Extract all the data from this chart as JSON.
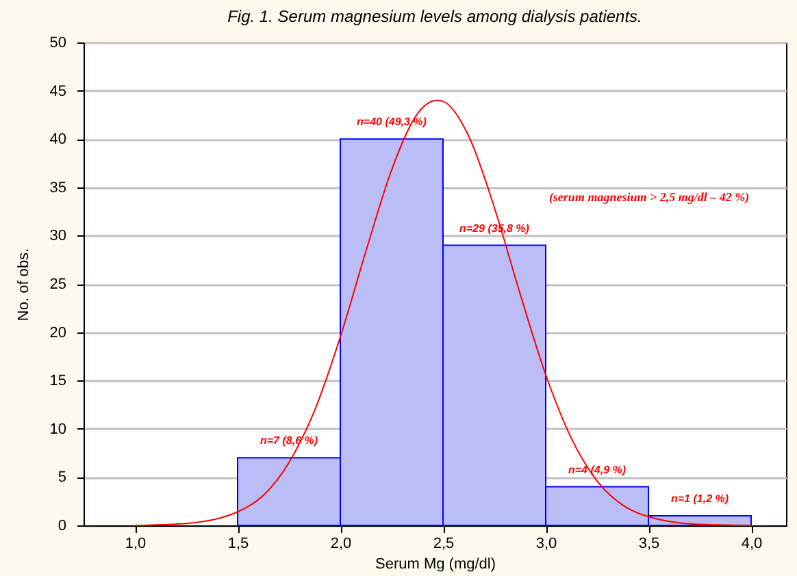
{
  "chart_data": {
    "type": "histogram",
    "title": "Fig. 1. Serum magnesium levels among dialysis patients.",
    "xlabel": "Serum Mg (mg/dl)",
    "ylabel": "No. of obs.",
    "bins": [
      1.5,
      2.0,
      2.5,
      3.0,
      3.5,
      4.0
    ],
    "series": [
      {
        "color": "#bbbdf6",
        "values": [
          7,
          40,
          29,
          4,
          1
        ],
        "value_labels": [
          "n=7 (8,6 %)",
          "n=40 (49,3 %)",
          "n=29 (35,8 %)",
          "n=4 (4,9 %)",
          "n=1 (1,2 %)"
        ]
      },
      {
        "type": "line",
        "color": "#ff0000",
        "x": [
          1.0,
          1.25,
          1.5,
          1.625,
          1.75,
          1.875,
          2.0,
          2.125,
          2.25,
          2.375,
          2.47,
          2.5,
          2.625,
          2.75,
          2.875,
          3.0,
          3.125,
          3.25,
          3.375,
          3.5,
          3.75,
          4.0
        ],
        "values": [
          0.0,
          0.2,
          1.4,
          3.1,
          6.5,
          11.9,
          19.5,
          28.4,
          36.8,
          42.6,
          44.0,
          43.9,
          40.3,
          32.9,
          24.0,
          15.6,
          9.0,
          4.6,
          2.1,
          0.9,
          0.1,
          0.0
        ]
      }
    ],
    "xlim": [
      0.75,
      4.17
    ],
    "xticks": [
      {
        "value": 1.0,
        "label": "1,0"
      },
      {
        "value": 1.5,
        "label": "1,5"
      },
      {
        "value": 2.0,
        "label": "2,0"
      },
      {
        "value": 2.5,
        "label": "2,5"
      },
      {
        "value": 3.0,
        "label": "3,0"
      },
      {
        "value": 3.5,
        "label": "3,5"
      },
      {
        "value": 4.0,
        "label": "4,0"
      }
    ],
    "ylim": [
      0,
      50
    ],
    "yticks": [
      0,
      5,
      10,
      15,
      20,
      25,
      30,
      35,
      40,
      45,
      50
    ],
    "grid": "y",
    "annotations": [
      "(serum magnesium > 2,5 mg/dl – 42 %)"
    ]
  }
}
